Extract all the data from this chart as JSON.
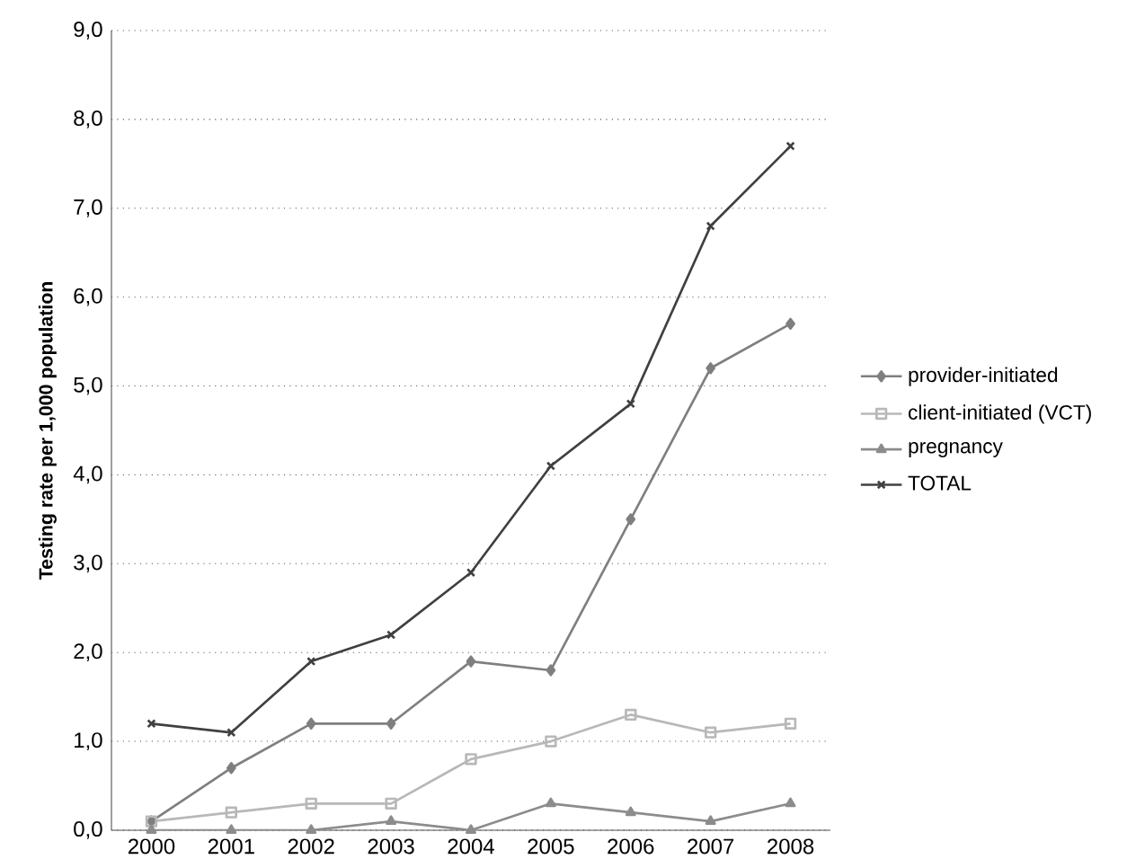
{
  "chart_data": {
    "type": "line",
    "ylabel": "Testing rate per 1,000 population",
    "categories": [
      "2000",
      "2001",
      "2002",
      "2003",
      "2004",
      "2005",
      "2006",
      "2007",
      "2008"
    ],
    "series": [
      {
        "name": "provider-initiated",
        "color": "#7f7f7f",
        "marker": "diamond",
        "values": [
          0.1,
          0.7,
          1.2,
          1.2,
          1.9,
          1.8,
          3.5,
          5.2,
          5.7
        ]
      },
      {
        "name": "client-initiated (VCT)",
        "color": "#b8b8b8",
        "marker": "square",
        "values": [
          0.1,
          0.2,
          0.3,
          0.3,
          0.8,
          1.0,
          1.3,
          1.1,
          1.2
        ]
      },
      {
        "name": "pregnancy",
        "color": "#8c8c8c",
        "marker": "triangle",
        "values": [
          0.0,
          0.0,
          0.0,
          0.1,
          0.0,
          0.3,
          0.2,
          0.1,
          0.3
        ]
      },
      {
        "name": "TOTAL",
        "color": "#404040",
        "marker": "cross",
        "values": [
          1.2,
          1.1,
          1.9,
          2.2,
          2.9,
          4.1,
          4.8,
          6.8,
          7.7
        ]
      }
    ],
    "ylim": [
      0,
      9
    ],
    "yticks": [
      {
        "value": 0,
        "label": "0,0"
      },
      {
        "value": 1,
        "label": "1,0"
      },
      {
        "value": 2,
        "label": "2,0"
      },
      {
        "value": 3,
        "label": "3,0"
      },
      {
        "value": 4,
        "label": "4,0"
      },
      {
        "value": 5,
        "label": "5,0"
      },
      {
        "value": 6,
        "label": "6,0"
      },
      {
        "value": 7,
        "label": "7,0"
      },
      {
        "value": 8,
        "label": "8,0"
      },
      {
        "value": 9,
        "label": "9,0"
      }
    ],
    "grid": "y",
    "legend": "right",
    "line_style": "solid"
  }
}
